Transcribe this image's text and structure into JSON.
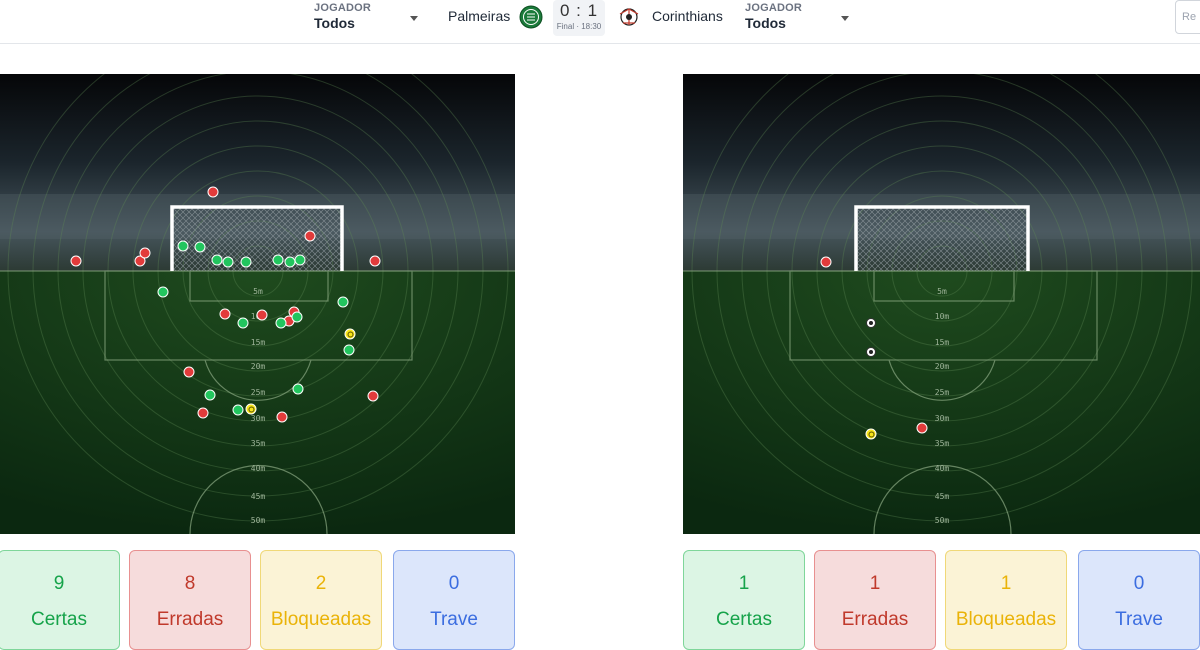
{
  "header": {
    "home_player_label": "JOGADOR",
    "home_player_value": "Todos",
    "away_player_label": "JOGADOR",
    "away_player_value": "Todos",
    "home_team": "Palmeiras",
    "away_team": "Corinthians",
    "score": "0 : 1",
    "status": "Final · 18:30",
    "search_placeholder": "Re"
  },
  "colors": {
    "certa": "#22c55e",
    "errada": "#e23b3b",
    "bloqueada": "#f7e51a",
    "trave": "#3b6de0"
  },
  "distance_labels": [
    "5m",
    "10m",
    "15m",
    "20m",
    "25m",
    "30m",
    "35m",
    "40m",
    "45m",
    "50m"
  ],
  "home": {
    "stats": [
      {
        "key": "certas",
        "value": "9",
        "label": "Certas"
      },
      {
        "key": "erradas",
        "value": "8",
        "label": "Erradas"
      },
      {
        "key": "bloqueadas",
        "value": "2",
        "label": "Bloqueadas"
      },
      {
        "key": "trave",
        "value": "0",
        "label": "Trave"
      }
    ]
  },
  "away": {
    "stats": [
      {
        "key": "certas",
        "value": "1",
        "label": "Certas"
      },
      {
        "key": "erradas",
        "value": "1",
        "label": "Erradas"
      },
      {
        "key": "bloqueadas",
        "value": "1",
        "label": "Bloqueadas"
      },
      {
        "key": "trave",
        "value": "0",
        "label": "Trave"
      }
    ]
  }
}
